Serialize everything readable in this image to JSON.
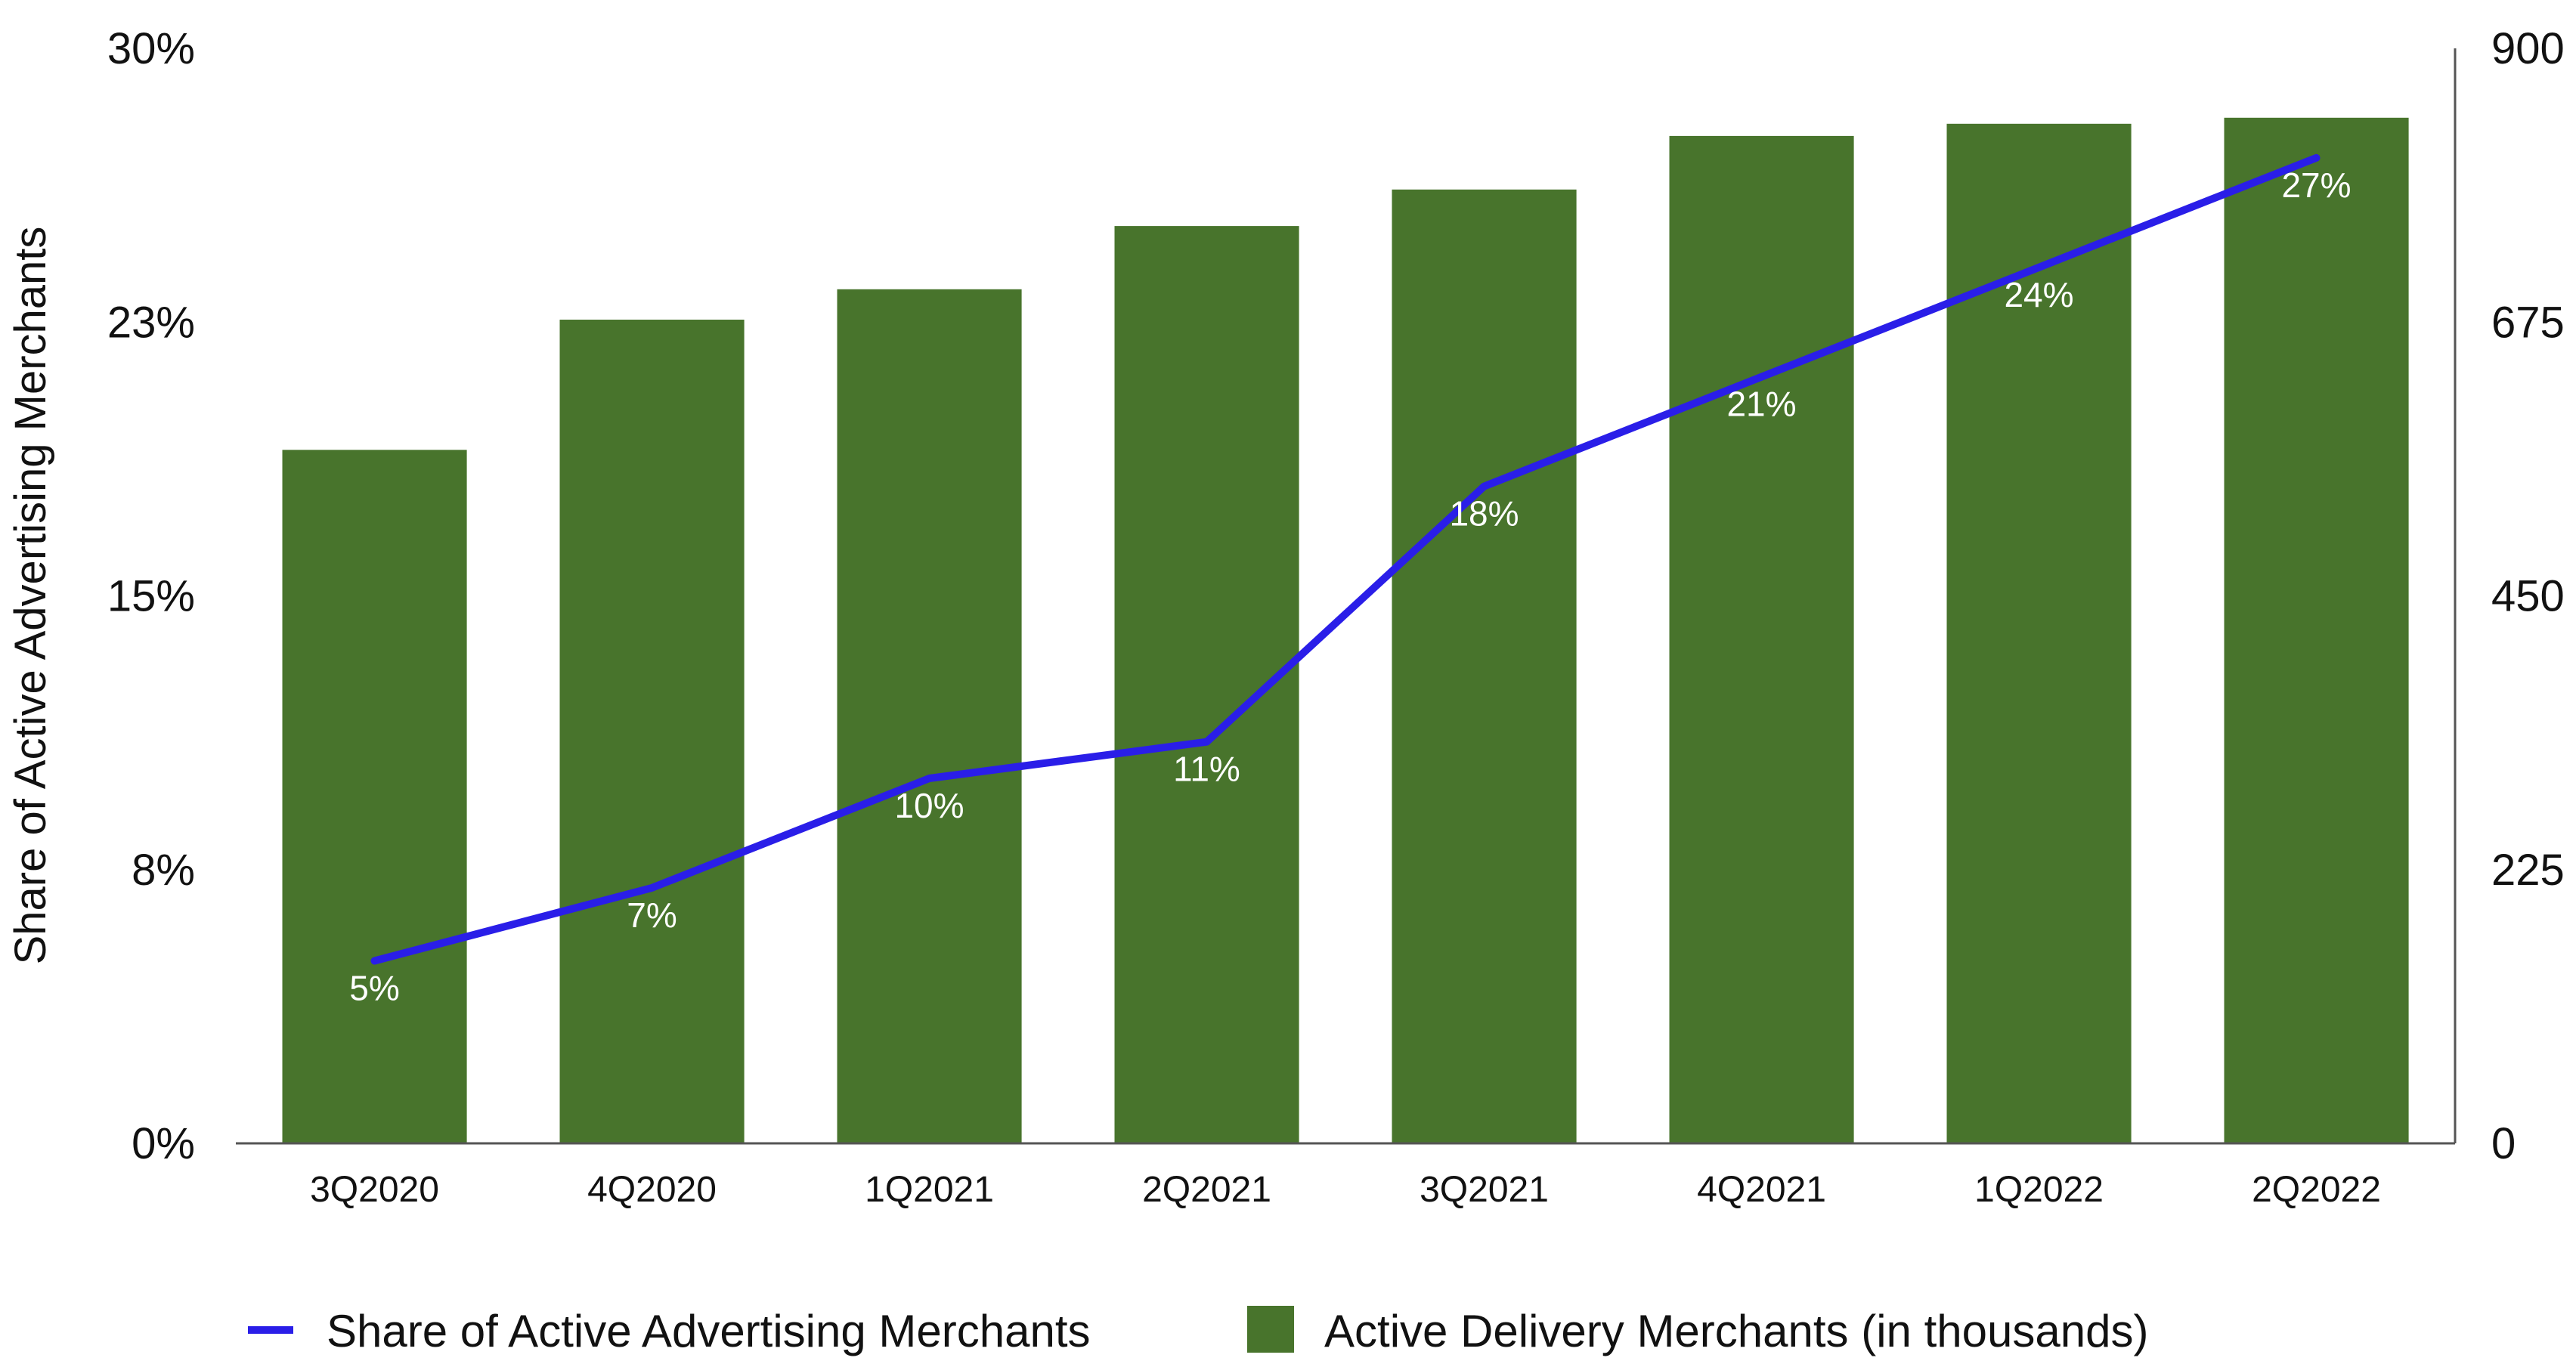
{
  "chart_data": {
    "type": "bar",
    "categories": [
      "3Q2020",
      "4Q2020",
      "1Q2021",
      "2Q2021",
      "3Q2021",
      "4Q2021",
      "1Q2022",
      "2Q2022"
    ],
    "series": [
      {
        "name": "Active Delivery Merchants (in thousands)",
        "type": "bar",
        "axis": "right",
        "color": "#48742c",
        "values": [
          570,
          677,
          702,
          754,
          784,
          828,
          838,
          843
        ]
      },
      {
        "name": "Share of Active Advertising Merchants",
        "type": "line",
        "axis": "left",
        "color": "#2a1ee8",
        "values": [
          5.0,
          7.0,
          10.0,
          11.0,
          18.0,
          21.0,
          24.0,
          27.0
        ],
        "data_labels": [
          "5%",
          "7%",
          "10%",
          "11%",
          "18%",
          "21%",
          "24%",
          "27%"
        ]
      }
    ],
    "ylabel": "Share of Active Advertising Merchants",
    "y_left": {
      "ylim": [
        0,
        30
      ],
      "ticks": [
        "0%",
        "8%",
        "15%",
        "23%",
        "30%"
      ]
    },
    "y_right": {
      "ylim": [
        0,
        900
      ],
      "ticks": [
        "0",
        "225",
        "450",
        "675",
        "900"
      ]
    },
    "grid": false,
    "legend_position": "bottom"
  }
}
